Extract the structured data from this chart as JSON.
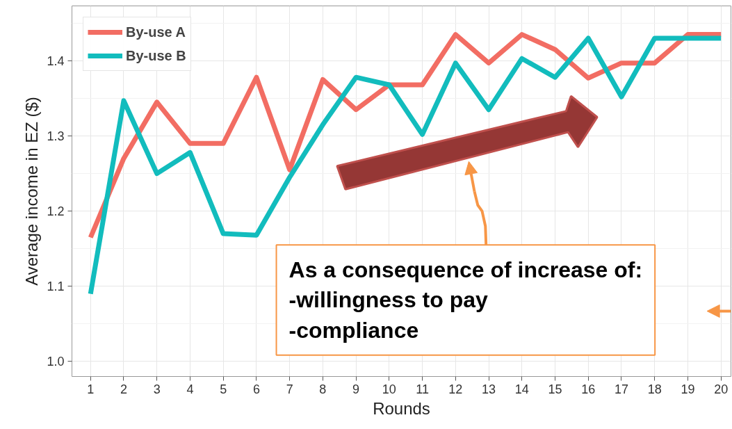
{
  "chart_data": {
    "type": "line",
    "xlabel": "Rounds",
    "ylabel": "Average income in EZ ($)",
    "x": [
      1,
      2,
      3,
      4,
      5,
      6,
      7,
      8,
      9,
      10,
      11,
      12,
      13,
      14,
      15,
      16,
      17,
      18,
      19,
      20
    ],
    "series": [
      {
        "name": "By-use A",
        "color": "#f26d63",
        "values": [
          1.165,
          1.27,
          1.345,
          1.29,
          1.29,
          1.378,
          1.255,
          1.375,
          1.335,
          1.368,
          1.368,
          1.435,
          1.397,
          1.435,
          1.415,
          1.377,
          1.397,
          1.397,
          1.435,
          1.435
        ]
      },
      {
        "name": "By-use B",
        "color": "#12bcbd",
        "values": [
          1.09,
          1.347,
          1.25,
          1.278,
          1.17,
          1.168,
          1.245,
          1.315,
          1.378,
          1.368,
          1.302,
          1.397,
          1.335,
          1.403,
          1.378,
          1.43,
          1.352,
          1.43,
          1.43,
          1.43
        ]
      }
    ],
    "xlim": [
      0.44,
      20.3
    ],
    "ylim": [
      0.98,
      1.473
    ],
    "xticks": [
      1,
      2,
      3,
      4,
      5,
      6,
      7,
      8,
      9,
      10,
      11,
      12,
      13,
      14,
      15,
      16,
      17,
      18,
      19,
      20
    ],
    "yticks": [
      {
        "value": 1.0,
        "label": "1.0"
      },
      {
        "value": 1.1,
        "label": "1.1"
      },
      {
        "value": 1.2,
        "label": "1.2"
      },
      {
        "value": 1.3,
        "label": "1.3"
      },
      {
        "value": 1.4,
        "label": "1.4"
      }
    ],
    "grid": true,
    "legend": "top left",
    "marker": "none",
    "line_style": "solid",
    "annotations": [
      "As a consequence of increase of:\n-willingness to pay\n-compliance"
    ]
  }
}
